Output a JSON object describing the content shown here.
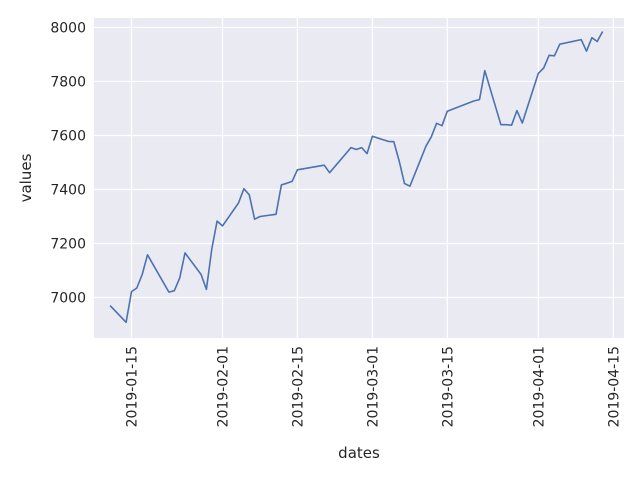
{
  "chart_data": {
    "type": "line",
    "title": "",
    "xlabel": "dates",
    "ylabel": "values",
    "xlim": [
      "2019-01-08",
      "2019-04-17"
    ],
    "ylim": [
      6850,
      8035
    ],
    "grid": true,
    "colors": {
      "background": "#eaeaf2",
      "grid": "#ffffff",
      "line": "#4c72b0",
      "text": "#262626"
    },
    "x_ticks": [
      {
        "date": "2019-01-15",
        "label": "2019-01-15"
      },
      {
        "date": "2019-02-01",
        "label": "2019-02-01"
      },
      {
        "date": "2019-02-15",
        "label": "2019-02-15"
      },
      {
        "date": "2019-03-01",
        "label": "2019-03-01"
      },
      {
        "date": "2019-03-15",
        "label": "2019-03-15"
      },
      {
        "date": "2019-04-01",
        "label": "2019-04-01"
      },
      {
        "date": "2019-04-15",
        "label": "2019-04-15"
      }
    ],
    "y_ticks": [
      {
        "value": 7000,
        "label": "7000"
      },
      {
        "value": 7200,
        "label": "7200"
      },
      {
        "value": 7400,
        "label": "7400"
      },
      {
        "value": 7600,
        "label": "7600"
      },
      {
        "value": 7800,
        "label": "7800"
      },
      {
        "value": 8000,
        "label": "8000"
      }
    ],
    "series": [
      {
        "x": [
          "2019-01-11",
          "2019-01-14",
          "2019-01-15",
          "2019-01-16",
          "2019-01-17",
          "2019-01-18",
          "2019-01-22",
          "2019-01-23",
          "2019-01-24",
          "2019-01-25",
          "2019-01-28",
          "2019-01-29",
          "2019-01-30",
          "2019-01-31",
          "2019-02-01",
          "2019-02-04",
          "2019-02-05",
          "2019-02-06",
          "2019-02-07",
          "2019-02-08",
          "2019-02-11",
          "2019-02-12",
          "2019-02-13",
          "2019-02-14",
          "2019-02-15",
          "2019-02-20",
          "2019-02-21",
          "2019-02-25",
          "2019-02-26",
          "2019-02-27",
          "2019-02-28",
          "2019-03-01",
          "2019-03-04",
          "2019-03-05",
          "2019-03-06",
          "2019-03-07",
          "2019-03-08",
          "2019-03-11",
          "2019-03-12",
          "2019-03-13",
          "2019-03-14",
          "2019-03-15",
          "2019-03-20",
          "2019-03-21",
          "2019-03-22",
          "2019-03-25",
          "2019-03-26",
          "2019-03-27",
          "2019-03-28",
          "2019-03-29",
          "2019-04-01",
          "2019-04-02",
          "2019-04-03",
          "2019-04-04",
          "2019-04-05",
          "2019-04-09",
          "2019-04-10",
          "2019-04-11",
          "2019-04-12",
          "2019-04-13"
        ],
        "values": [
          6970,
          6908,
          7022,
          7035,
          7085,
          7158,
          7020,
          7025,
          7072,
          7165,
          7085,
          7030,
          7180,
          7283,
          7265,
          7350,
          7403,
          7380,
          7290,
          7300,
          7308,
          7417,
          7423,
          7430,
          7473,
          7490,
          7462,
          7555,
          7548,
          7555,
          7533,
          7597,
          7578,
          7577,
          7505,
          7422,
          7412,
          7560,
          7595,
          7645,
          7636,
          7690,
          7728,
          7733,
          7840,
          7640,
          7640,
          7638,
          7692,
          7646,
          7830,
          7850,
          7897,
          7895,
          7938,
          7955,
          7912,
          7962,
          7948,
          7985
        ]
      }
    ]
  }
}
